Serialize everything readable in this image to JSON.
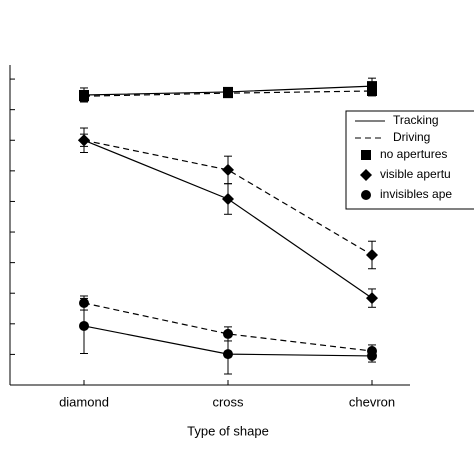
{
  "chart_data": {
    "type": "line",
    "xlabel": "Type of shape",
    "categories": [
      "diamond",
      "cross",
      "chevron"
    ],
    "ylim": [
      0,
      10.46
    ],
    "yticks": [
      0,
      1,
      2,
      3,
      4,
      5,
      6,
      7,
      8,
      9,
      10
    ],
    "ytick_labels": false,
    "line_styles": [
      {
        "name": "Tracking",
        "dash": "solid"
      },
      {
        "name": "Driving",
        "dash": "dashed"
      }
    ],
    "marker_groups": [
      {
        "name": "no apertures",
        "marker": "square"
      },
      {
        "name": "visible apertu",
        "marker": "diamond"
      },
      {
        "name": "invisibles ape",
        "marker": "circle"
      }
    ],
    "color": "#000000",
    "series": [
      {
        "style": 0,
        "group": 0,
        "values": [
          9.48,
          9.58,
          9.77
        ],
        "errors": [
          0.23,
          0,
          0.26
        ]
      },
      {
        "style": 1,
        "group": 0,
        "values": [
          9.44,
          9.54,
          9.61
        ],
        "errors": [
          0.16,
          0,
          0.16
        ]
      },
      {
        "style": 0,
        "group": 1,
        "values": [
          8.0,
          6.08,
          2.84
        ],
        "errors": [
          0.4,
          0.5,
          0.3
        ]
      },
      {
        "style": 1,
        "group": 1,
        "values": [
          8.0,
          7.03,
          4.25
        ],
        "errors": [
          0.2,
          0.45,
          0.45
        ]
      },
      {
        "style": 0,
        "group": 2,
        "values": [
          1.93,
          1.01,
          0.95
        ],
        "errors": [
          0.9,
          0.65,
          0.2
        ]
      },
      {
        "style": 1,
        "group": 2,
        "values": [
          2.68,
          1.67,
          1.11
        ],
        "errors": [
          0.23,
          0.23,
          0.2
        ]
      }
    ]
  }
}
